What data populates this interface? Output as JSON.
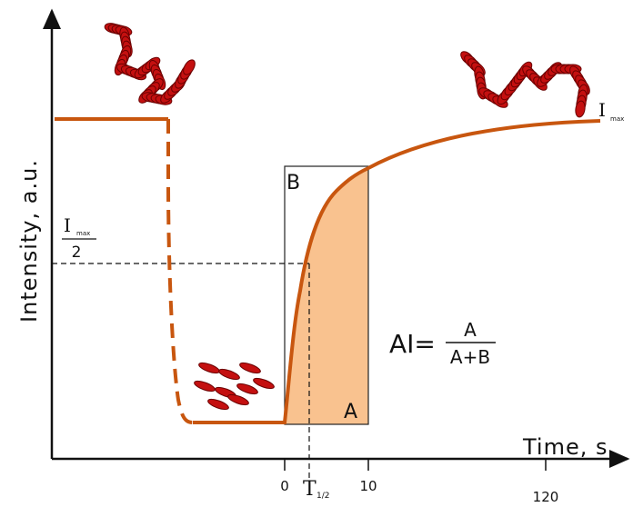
{
  "axes": {
    "y_label": "Intensity, a.u.",
    "x_label": "Time, s."
  },
  "ticks": [
    "0",
    "10",
    "120"
  ],
  "t_half": {
    "symbol": "T",
    "subscript": "1/2"
  },
  "i_max": {
    "symbol": "I",
    "subscript": "max"
  },
  "half_max": {
    "numerator": "I",
    "subscript": "max",
    "denominator": "2"
  },
  "regions": {
    "a": "A",
    "b": "B"
  },
  "formula": {
    "lhs": "AI=",
    "numerator": "A",
    "denominator": "A+B"
  }
}
